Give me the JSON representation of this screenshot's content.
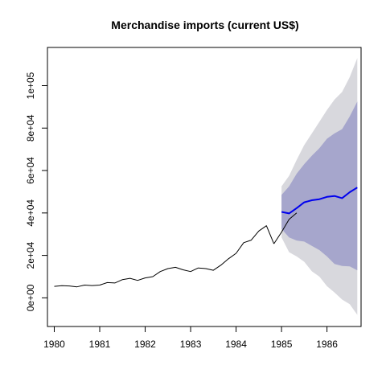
{
  "chart_data": {
    "type": "line",
    "title": "Merchandise imports (current US$)",
    "xlabel": "",
    "ylabel": "",
    "xlim": [
      1979.85,
      1986.75
    ],
    "ylim": [
      -13500,
      118000
    ],
    "x_ticks": [
      1980,
      1981,
      1982,
      1983,
      1984,
      1985,
      1986
    ],
    "x_tick_labels": [
      "1980",
      "1981",
      "1982",
      "1983",
      "1984",
      "1985",
      "1986"
    ],
    "y_ticks": [
      0,
      20000,
      40000,
      60000,
      80000,
      100000
    ],
    "y_tick_labels": [
      "0e+00",
      "2e+04",
      "4e+04",
      "6e+04",
      "8e+04",
      "1e+05"
    ],
    "grid": false,
    "series": [
      {
        "role": "observed",
        "color": "#000000",
        "x": [
          1980.0,
          1980.167,
          1980.333,
          1980.5,
          1980.667,
          1980.833,
          1981.0,
          1981.167,
          1981.333,
          1981.5,
          1981.667,
          1981.833,
          1982.0,
          1982.167,
          1982.333,
          1982.5,
          1982.667,
          1982.833,
          1983.0,
          1983.167,
          1983.333,
          1983.5,
          1983.667,
          1983.833,
          1984.0,
          1984.167,
          1984.333,
          1984.5,
          1984.667,
          1984.833
        ],
        "y": [
          5400,
          5700,
          5600,
          5200,
          6000,
          5800,
          6000,
          7200,
          7000,
          8600,
          9200,
          8200,
          9400,
          10000,
          12400,
          13800,
          14400,
          13200,
          12400,
          14100,
          13800,
          13000,
          15400,
          18400,
          21000,
          26000,
          27200,
          31500,
          34000,
          25500
        ]
      },
      {
        "role": "observed-tail",
        "color": "#000000",
        "x": [
          1984.833,
          1985.0,
          1985.167,
          1985.333
        ],
        "y": [
          25500,
          31000,
          37000,
          40000
        ]
      },
      {
        "role": "forecast",
        "color": "#0000ee",
        "x": [
          1985.0,
          1985.167,
          1985.333,
          1985.5,
          1985.667,
          1985.833,
          1986.0,
          1986.167,
          1986.333,
          1986.5,
          1986.667
        ],
        "y": [
          40500,
          39800,
          42300,
          45000,
          46000,
          46500,
          47600,
          48000,
          47000,
          49800,
          52000
        ]
      }
    ],
    "bands": [
      {
        "level": "95%",
        "color": "#d8d8dd",
        "x": [
          1985.0,
          1985.167,
          1985.333,
          1985.5,
          1985.667,
          1985.833,
          1986.0,
          1986.167,
          1986.333,
          1986.5,
          1986.667
        ],
        "lower": [
          28500,
          21500,
          19500,
          17000,
          12500,
          10000,
          5500,
          2500,
          -800,
          -3000,
          -8000
        ],
        "upper": [
          52500,
          57500,
          65000,
          72000,
          77500,
          83000,
          88500,
          93500,
          97000,
          104000,
          113000
        ]
      },
      {
        "level": "80%",
        "color": "#a6a6cc",
        "x": [
          1985.0,
          1985.167,
          1985.333,
          1985.5,
          1985.667,
          1985.833,
          1986.0,
          1986.167,
          1986.333,
          1986.5,
          1986.667
        ],
        "lower": [
          32500,
          28500,
          27000,
          26500,
          24500,
          22500,
          19500,
          16000,
          15000,
          14800,
          13000
        ],
        "upper": [
          48500,
          52500,
          58500,
          63000,
          67000,
          70500,
          75000,
          77500,
          79500,
          85500,
          92500
        ]
      }
    ]
  }
}
